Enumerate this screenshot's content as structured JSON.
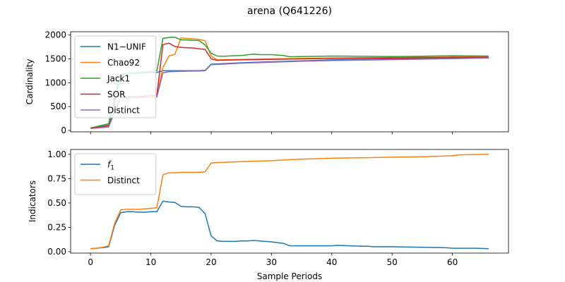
{
  "figure": {
    "title": "arena (Q641226)",
    "xlabel": "Sample Periods"
  },
  "chart_data": [
    {
      "type": "line",
      "ylabel": "Cardinality",
      "xlim": [
        -3.3,
        69.3
      ],
      "ylim": [
        -30,
        2070
      ],
      "xticks": [
        0,
        10,
        20,
        30,
        40,
        50,
        60
      ],
      "yticks": [
        0,
        500,
        1000,
        1500,
        2000
      ],
      "show_xtick_labels": false,
      "grid": false,
      "legend_position": "upper-left",
      "series": [
        {
          "name": "N1−UNIF",
          "color": "#1f77b4",
          "points": [
            [
              0,
              50
            ],
            [
              1,
              65
            ],
            [
              2,
              90
            ],
            [
              3,
              110
            ],
            [
              4,
              580
            ],
            [
              5,
              1150
            ],
            [
              6,
              1190
            ],
            [
              7,
              1195
            ],
            [
              8,
              1200
            ],
            [
              9,
              1205
            ],
            [
              10,
              1210
            ],
            [
              11,
              1215
            ],
            [
              12,
              1250
            ],
            [
              13,
              1250
            ],
            [
              14,
              1252
            ],
            [
              15,
              1253
            ],
            [
              16,
              1254
            ],
            [
              17,
              1254
            ],
            [
              18,
              1255
            ],
            [
              19,
              1260
            ],
            [
              20,
              1390
            ],
            [
              22,
              1400
            ],
            [
              25,
              1420
            ],
            [
              30,
              1440
            ],
            [
              35,
              1460
            ],
            [
              40,
              1480
            ],
            [
              45,
              1490
            ],
            [
              50,
              1500
            ],
            [
              55,
              1510
            ],
            [
              60,
              1520
            ],
            [
              66,
              1540
            ]
          ]
        },
        {
          "name": "Chao92",
          "color": "#ff7f0e",
          "points": [
            [
              0,
              50
            ],
            [
              1,
              60
            ],
            [
              2,
              80
            ],
            [
              3,
              100
            ],
            [
              4,
              400
            ],
            [
              5,
              680
            ],
            [
              6,
              700
            ],
            [
              7,
              705
            ],
            [
              8,
              710
            ],
            [
              9,
              720
            ],
            [
              10,
              730
            ],
            [
              11,
              740
            ],
            [
              12,
              1320
            ],
            [
              13,
              1560
            ],
            [
              14,
              1600
            ],
            [
              15,
              1940
            ],
            [
              16,
              1930
            ],
            [
              17,
              1920
            ],
            [
              18,
              1910
            ],
            [
              19,
              1880
            ],
            [
              20,
              1560
            ],
            [
              21,
              1480
            ],
            [
              25,
              1490
            ],
            [
              30,
              1500
            ],
            [
              35,
              1510
            ],
            [
              40,
              1520
            ],
            [
              45,
              1525
            ],
            [
              50,
              1530
            ],
            [
              55,
              1535
            ],
            [
              60,
              1540
            ],
            [
              66,
              1545
            ]
          ]
        },
        {
          "name": "Jack1",
          "color": "#2ca02c",
          "points": [
            [
              0,
              55
            ],
            [
              1,
              80
            ],
            [
              2,
              110
            ],
            [
              3,
              140
            ],
            [
              4,
              700
            ],
            [
              5,
              1180
            ],
            [
              6,
              1200
            ],
            [
              7,
              1210
            ],
            [
              8,
              1220
            ],
            [
              9,
              1225
            ],
            [
              10,
              1235
            ],
            [
              11,
              1245
            ],
            [
              12,
              1930
            ],
            [
              13,
              1950
            ],
            [
              14,
              1955
            ],
            [
              15,
              1900
            ],
            [
              16,
              1895
            ],
            [
              17,
              1890
            ],
            [
              18,
              1885
            ],
            [
              19,
              1790
            ],
            [
              20,
              1620
            ],
            [
              21,
              1560
            ],
            [
              22,
              1555
            ],
            [
              25,
              1570
            ],
            [
              27,
              1600
            ],
            [
              28,
              1590
            ],
            [
              30,
              1590
            ],
            [
              32,
              1570
            ],
            [
              33,
              1545
            ],
            [
              35,
              1550
            ],
            [
              40,
              1560
            ],
            [
              45,
              1555
            ],
            [
              50,
              1550
            ],
            [
              55,
              1555
            ],
            [
              60,
              1565
            ],
            [
              66,
              1560
            ]
          ]
        },
        {
          "name": "SOR",
          "color": "#d62728",
          "points": [
            [
              0,
              50
            ],
            [
              1,
              60
            ],
            [
              2,
              75
            ],
            [
              3,
              95
            ],
            [
              4,
              390
            ],
            [
              5,
              690
            ],
            [
              6,
              700
            ],
            [
              7,
              705
            ],
            [
              8,
              710
            ],
            [
              9,
              720
            ],
            [
              10,
              730
            ],
            [
              11,
              740
            ],
            [
              12,
              1800
            ],
            [
              13,
              1830
            ],
            [
              14,
              1760
            ],
            [
              15,
              1740
            ],
            [
              16,
              1735
            ],
            [
              17,
              1730
            ],
            [
              18,
              1710
            ],
            [
              19,
              1700
            ],
            [
              20,
              1500
            ],
            [
              21,
              1470
            ],
            [
              25,
              1480
            ],
            [
              30,
              1490
            ],
            [
              35,
              1500
            ],
            [
              40,
              1510
            ],
            [
              45,
              1515
            ],
            [
              50,
              1520
            ],
            [
              55,
              1525
            ],
            [
              60,
              1530
            ],
            [
              66,
              1535
            ]
          ]
        },
        {
          "name": "Distinct",
          "color": "#9467bd",
          "points": [
            [
              0,
              40
            ],
            [
              1,
              50
            ],
            [
              2,
              60
            ],
            [
              3,
              70
            ],
            [
              4,
              380
            ],
            [
              5,
              675
            ],
            [
              6,
              680
            ],
            [
              7,
              684
            ],
            [
              8,
              688
            ],
            [
              9,
              692
            ],
            [
              10,
              696
            ],
            [
              11,
              700
            ],
            [
              12,
              1210
            ],
            [
              13,
              1230
            ],
            [
              14,
              1235
            ],
            [
              15,
              1240
            ],
            [
              16,
              1242
            ],
            [
              17,
              1244
            ],
            [
              18,
              1246
            ],
            [
              19,
              1250
            ],
            [
              20,
              1380
            ],
            [
              22,
              1390
            ],
            [
              25,
              1410
            ],
            [
              30,
              1430
            ],
            [
              35,
              1450
            ],
            [
              40,
              1465
            ],
            [
              45,
              1475
            ],
            [
              50,
              1485
            ],
            [
              55,
              1495
            ],
            [
              60,
              1505
            ],
            [
              66,
              1520
            ]
          ]
        }
      ]
    },
    {
      "type": "line",
      "ylabel": "Indicators",
      "xlim": [
        -3.3,
        69.3
      ],
      "ylim": [
        -0.015,
        1.05
      ],
      "xticks": [
        0,
        10,
        20,
        30,
        40,
        50,
        60
      ],
      "yticks": [
        0.0,
        0.25,
        0.5,
        0.75,
        1.0
      ],
      "ytick_labels": [
        "0.00",
        "0.25",
        "0.50",
        "0.75",
        "1.00"
      ],
      "grid": false,
      "legend_position": "upper-left",
      "series": [
        {
          "name": "f",
          "name_subscript": "1",
          "color": "#1f77b4",
          "points": [
            [
              0,
              0.03
            ],
            [
              1,
              0.035
            ],
            [
              2,
              0.04
            ],
            [
              3,
              0.05
            ],
            [
              4,
              0.27
            ],
            [
              5,
              0.4
            ],
            [
              6,
              0.41
            ],
            [
              7,
              0.41
            ],
            [
              8,
              0.405
            ],
            [
              9,
              0.405
            ],
            [
              10,
              0.41
            ],
            [
              11,
              0.41
            ],
            [
              12,
              0.52
            ],
            [
              13,
              0.51
            ],
            [
              14,
              0.505
            ],
            [
              15,
              0.465
            ],
            [
              16,
              0.46
            ],
            [
              17,
              0.46
            ],
            [
              18,
              0.455
            ],
            [
              19,
              0.39
            ],
            [
              20,
              0.16
            ],
            [
              21,
              0.11
            ],
            [
              22,
              0.105
            ],
            [
              24,
              0.105
            ],
            [
              25,
              0.11
            ],
            [
              26,
              0.11
            ],
            [
              27,
              0.115
            ],
            [
              28,
              0.11
            ],
            [
              30,
              0.1
            ],
            [
              32,
              0.085
            ],
            [
              33,
              0.06
            ],
            [
              35,
              0.06
            ],
            [
              40,
              0.06
            ],
            [
              41,
              0.065
            ],
            [
              45,
              0.055
            ],
            [
              46,
              0.055
            ],
            [
              47,
              0.05
            ],
            [
              50,
              0.05
            ],
            [
              55,
              0.045
            ],
            [
              59,
              0.04
            ],
            [
              60,
              0.035
            ],
            [
              64,
              0.035
            ],
            [
              66,
              0.03
            ]
          ]
        },
        {
          "name": "Distinct",
          "color": "#ff7f0e",
          "points": [
            [
              0,
              0.03
            ],
            [
              1,
              0.035
            ],
            [
              2,
              0.045
            ],
            [
              3,
              0.06
            ],
            [
              4,
              0.29
            ],
            [
              5,
              0.43
            ],
            [
              6,
              0.435
            ],
            [
              7,
              0.435
            ],
            [
              8,
              0.435
            ],
            [
              9,
              0.44
            ],
            [
              10,
              0.445
            ],
            [
              11,
              0.45
            ],
            [
              12,
              0.79
            ],
            [
              13,
              0.81
            ],
            [
              14,
              0.81
            ],
            [
              15,
              0.815
            ],
            [
              16,
              0.815
            ],
            [
              17,
              0.815
            ],
            [
              18,
              0.815
            ],
            [
              19,
              0.82
            ],
            [
              20,
              0.91
            ],
            [
              21,
              0.915
            ],
            [
              25,
              0.925
            ],
            [
              30,
              0.935
            ],
            [
              33,
              0.945
            ],
            [
              35,
              0.95
            ],
            [
              40,
              0.96
            ],
            [
              45,
              0.965
            ],
            [
              50,
              0.97
            ],
            [
              55,
              0.975
            ],
            [
              60,
              0.985
            ],
            [
              61,
              0.995
            ],
            [
              66,
              1.0
            ]
          ]
        }
      ]
    }
  ]
}
